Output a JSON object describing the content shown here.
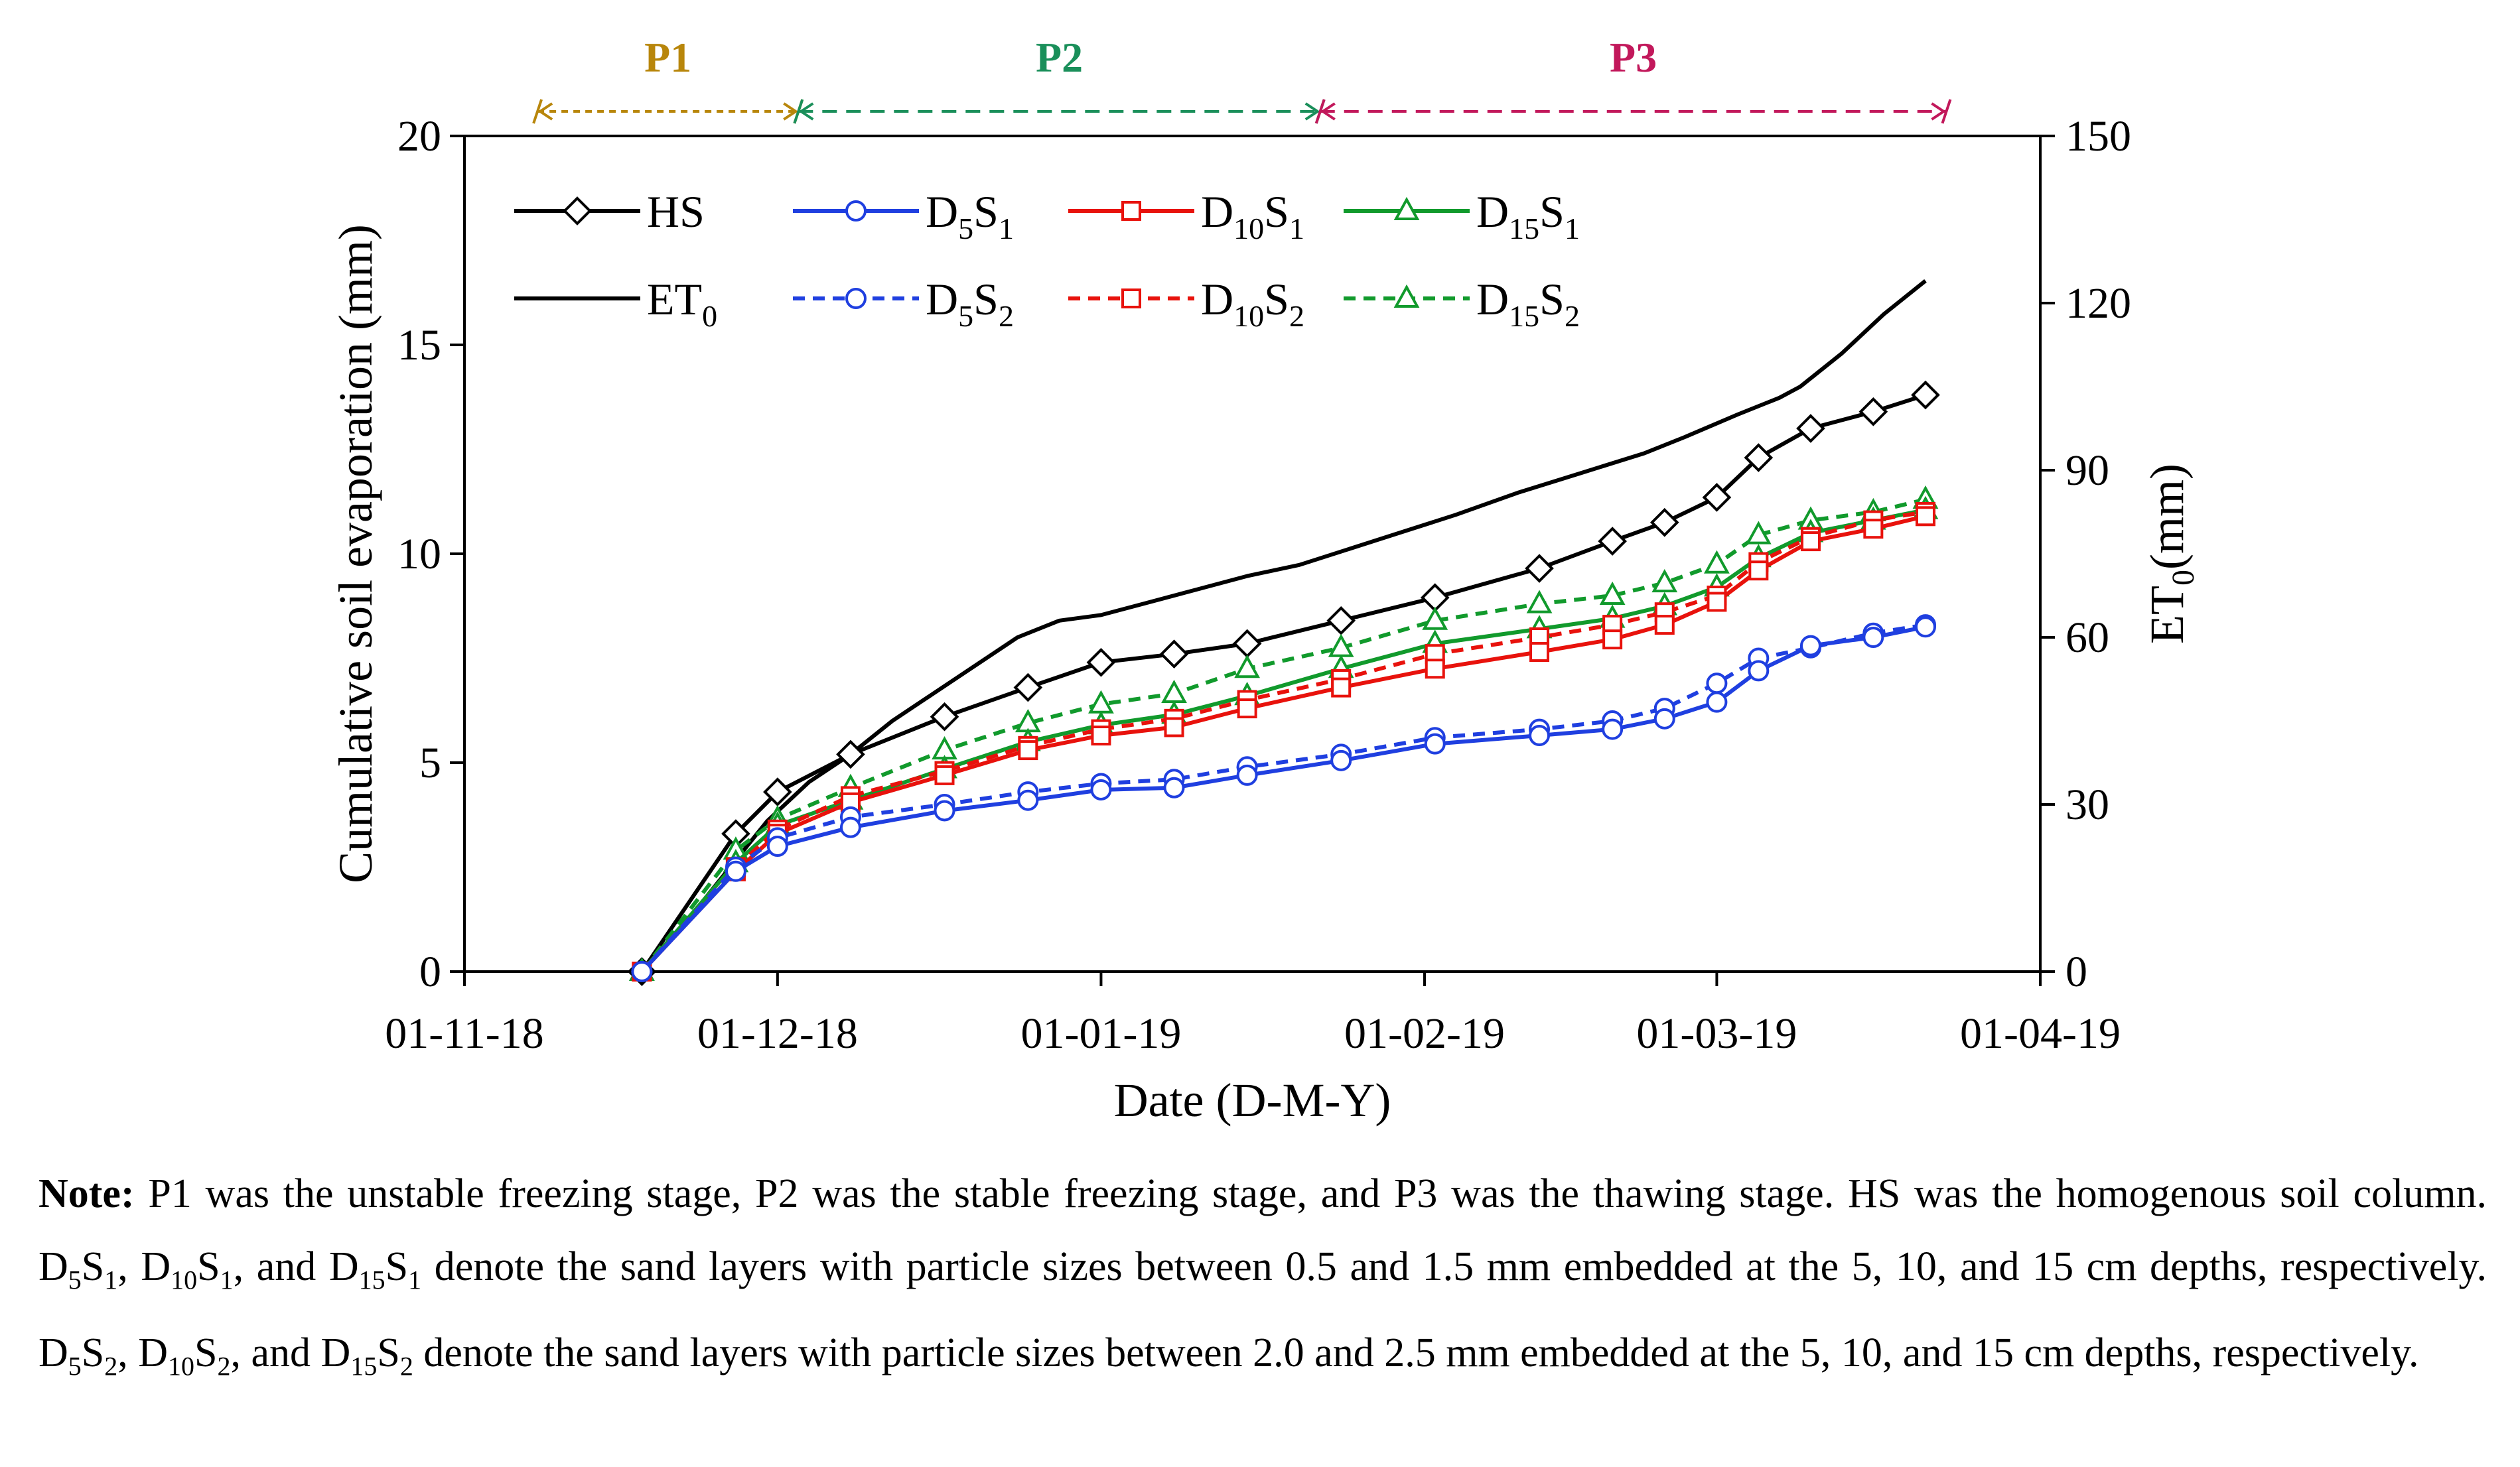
{
  "chart_data": {
    "type": "line",
    "x_axis": {
      "label": "Date (D-M-Y)",
      "range": [
        "2018-11-01",
        "2019-04-01"
      ],
      "ticks": [
        "2018-11-01",
        "2018-12-01",
        "2019-01-01",
        "2019-02-01",
        "2019-03-01",
        "2019-04-01"
      ],
      "tick_labels": [
        "01-11-18",
        "01-12-18",
        "01-01-19",
        "01-02-19",
        "01-03-19",
        "01-04-19"
      ]
    },
    "y_axis_left": {
      "label": "Cumulative soil evaporation (mm)",
      "range": [
        0,
        20
      ],
      "ticks": [
        0,
        5,
        10,
        15,
        20
      ],
      "tick_labels": [
        "0",
        "5",
        "10",
        "15",
        "20"
      ]
    },
    "y_axis_right": {
      "label": "ET",
      "label_sub": "0",
      "label_suffix": "(mm)",
      "range": [
        0,
        150
      ],
      "ticks": [
        0,
        30,
        60,
        90,
        120,
        150
      ],
      "tick_labels": [
        "0",
        "30",
        "60",
        "90",
        "120",
        "150"
      ]
    },
    "grid": false,
    "legend_position": "top-left",
    "stages": [
      {
        "label": "P1",
        "color": "#b8860b",
        "start": "2018-11-08",
        "end": "2018-12-03"
      },
      {
        "label": "P2",
        "color": "#1a8f5a",
        "start": "2018-12-03",
        "end": "2019-01-22"
      },
      {
        "label": "P3",
        "color": "#c2185b",
        "start": "2019-01-22",
        "end": "2019-03-23"
      }
    ],
    "series": [
      {
        "name": "HS",
        "name_main": "HS",
        "sub1": "",
        "mid": "",
        "sub2": "",
        "axis": "left",
        "color": "#000000",
        "dash": false,
        "marker": "diamond",
        "x": [
          "2018-11-18",
          "2018-11-27",
          "2018-12-01",
          "2018-12-08",
          "2018-12-17",
          "2018-12-25",
          "2019-01-01",
          "2019-01-08",
          "2019-01-15",
          "2019-01-24",
          "2019-02-02",
          "2019-02-12",
          "2019-02-19",
          "2019-02-24",
          "2019-03-01",
          "2019-03-05",
          "2019-03-10",
          "2019-03-16",
          "2019-03-21"
        ],
        "y": [
          0.0,
          3.3,
          4.3,
          5.2,
          6.1,
          6.8,
          7.4,
          7.6,
          7.85,
          8.4,
          8.95,
          9.65,
          10.3,
          10.75,
          11.35,
          12.3,
          13.0,
          13.4,
          13.8
        ]
      },
      {
        "name": "D5S1",
        "name_main": "D",
        "sub1": "5",
        "mid": "S",
        "sub2": "1",
        "axis": "left",
        "color": "#1f3fe0",
        "dash": false,
        "marker": "circle",
        "x": [
          "2018-11-18",
          "2018-11-27",
          "2018-12-01",
          "2018-12-08",
          "2018-12-17",
          "2018-12-25",
          "2019-01-01",
          "2019-01-08",
          "2019-01-15",
          "2019-01-24",
          "2019-02-02",
          "2019-02-12",
          "2019-02-19",
          "2019-02-24",
          "2019-03-01",
          "2019-03-05",
          "2019-03-10",
          "2019-03-16",
          "2019-03-21"
        ],
        "y": [
          0.0,
          2.4,
          3.0,
          3.45,
          3.85,
          4.1,
          4.35,
          4.4,
          4.7,
          5.05,
          5.45,
          5.65,
          5.8,
          6.05,
          6.45,
          7.2,
          7.8,
          8.0,
          8.25
        ]
      },
      {
        "name": "D10S1",
        "name_main": "D",
        "sub1": "10",
        "mid": "S",
        "sub2": "1",
        "axis": "left",
        "color": "#e8120c",
        "dash": false,
        "marker": "square",
        "x": [
          "2018-11-18",
          "2018-11-27",
          "2018-12-01",
          "2018-12-08",
          "2018-12-17",
          "2018-12-25",
          "2019-01-01",
          "2019-01-08",
          "2019-01-15",
          "2019-01-24",
          "2019-02-02",
          "2019-02-12",
          "2019-02-19",
          "2019-02-24",
          "2019-03-01",
          "2019-03-05",
          "2019-03-10",
          "2019-03-16",
          "2019-03-21"
        ],
        "y": [
          0.0,
          2.4,
          3.3,
          4.05,
          4.7,
          5.3,
          5.65,
          5.85,
          6.3,
          6.8,
          7.25,
          7.65,
          7.95,
          8.3,
          8.85,
          9.6,
          10.3,
          10.6,
          10.9
        ]
      },
      {
        "name": "D15S1",
        "name_main": "D",
        "sub1": "15",
        "mid": "S",
        "sub2": "1",
        "axis": "left",
        "color": "#119a2c",
        "dash": false,
        "marker": "triangle",
        "x": [
          "2018-11-18",
          "2018-11-27",
          "2018-12-01",
          "2018-12-08",
          "2018-12-17",
          "2018-12-25",
          "2019-01-01",
          "2019-01-08",
          "2019-01-15",
          "2019-01-24",
          "2019-02-02",
          "2019-02-12",
          "2019-02-19",
          "2019-02-24",
          "2019-03-01",
          "2019-03-05",
          "2019-03-10",
          "2019-03-16",
          "2019-03-21"
        ],
        "y": [
          0.0,
          2.6,
          3.5,
          4.1,
          4.85,
          5.5,
          5.9,
          6.15,
          6.6,
          7.25,
          7.85,
          8.2,
          8.45,
          8.75,
          9.2,
          9.9,
          10.5,
          10.8,
          11.05
        ]
      },
      {
        "name": "ET0",
        "name_main": "ET",
        "sub1": "0",
        "mid": "",
        "sub2": "",
        "axis": "right",
        "color": "#000000",
        "dash": false,
        "marker": "none",
        "x": [
          "2018-11-18",
          "2018-11-20",
          "2018-11-24",
          "2018-11-27",
          "2018-11-30",
          "2018-12-04",
          "2018-12-08",
          "2018-12-12",
          "2018-12-16",
          "2018-12-20",
          "2018-12-24",
          "2018-12-28",
          "2019-01-01",
          "2019-01-05",
          "2019-01-10",
          "2019-01-15",
          "2019-01-20",
          "2019-01-25",
          "2019-01-30",
          "2019-02-04",
          "2019-02-10",
          "2019-02-16",
          "2019-02-22",
          "2019-02-26",
          "2019-03-03",
          "2019-03-07",
          "2019-03-09",
          "2019-03-13",
          "2019-03-17",
          "2019-03-21"
        ],
        "y": [
          0,
          4,
          13,
          20,
          27,
          34,
          39,
          45,
          50,
          55,
          60,
          63,
          64,
          66,
          68.5,
          71,
          73,
          76,
          79,
          82,
          86,
          89.5,
          93,
          96,
          100,
          103,
          105,
          111,
          118,
          124
        ]
      },
      {
        "name": "D5S2",
        "name_main": "D",
        "sub1": "5",
        "mid": "S",
        "sub2": "2",
        "axis": "left",
        "color": "#1f3fe0",
        "dash": true,
        "marker": "circle",
        "x": [
          "2018-11-18",
          "2018-11-27",
          "2018-12-01",
          "2018-12-08",
          "2018-12-17",
          "2018-12-25",
          "2019-01-01",
          "2019-01-08",
          "2019-01-15",
          "2019-01-24",
          "2019-02-02",
          "2019-02-12",
          "2019-02-19",
          "2019-02-24",
          "2019-03-01",
          "2019-03-05",
          "2019-03-10",
          "2019-03-16",
          "2019-03-21"
        ],
        "y": [
          0.0,
          2.5,
          3.2,
          3.7,
          4.0,
          4.3,
          4.5,
          4.6,
          4.9,
          5.2,
          5.6,
          5.8,
          6.0,
          6.3,
          6.9,
          7.5,
          7.75,
          8.1,
          8.3
        ]
      },
      {
        "name": "D10S2",
        "name_main": "D",
        "sub1": "10",
        "mid": "S",
        "sub2": "2",
        "axis": "left",
        "color": "#e8120c",
        "dash": true,
        "marker": "square",
        "x": [
          "2018-11-18",
          "2018-11-27",
          "2018-12-01",
          "2018-12-08",
          "2018-12-17",
          "2018-12-25",
          "2019-01-01",
          "2019-01-08",
          "2019-01-15",
          "2019-01-24",
          "2019-02-02",
          "2019-02-12",
          "2019-02-19",
          "2019-02-24",
          "2019-03-01",
          "2019-03-05",
          "2019-03-10",
          "2019-03-16",
          "2019-03-21"
        ],
        "y": [
          0.0,
          2.5,
          3.4,
          4.2,
          4.8,
          5.4,
          5.8,
          6.05,
          6.5,
          7.0,
          7.6,
          8.0,
          8.3,
          8.6,
          9.0,
          9.8,
          10.4,
          10.8,
          11.0
        ]
      },
      {
        "name": "D15S2",
        "name_main": "D",
        "sub1": "15",
        "mid": "S",
        "sub2": "2",
        "axis": "left",
        "color": "#119a2c",
        "dash": true,
        "marker": "triangle",
        "x": [
          "2018-11-18",
          "2018-11-27",
          "2018-12-01",
          "2018-12-08",
          "2018-12-17",
          "2018-12-25",
          "2019-01-01",
          "2019-01-08",
          "2019-01-15",
          "2019-01-24",
          "2019-02-02",
          "2019-02-12",
          "2019-02-19",
          "2019-02-24",
          "2019-03-01",
          "2019-03-05",
          "2019-03-10",
          "2019-03-16",
          "2019-03-21"
        ],
        "y": [
          0.0,
          2.9,
          3.65,
          4.4,
          5.3,
          5.95,
          6.4,
          6.65,
          7.25,
          7.75,
          8.4,
          8.8,
          9.0,
          9.3,
          9.75,
          10.45,
          10.8,
          11.0,
          11.3
        ]
      }
    ]
  },
  "note": {
    "lead": "Note:",
    "segments": [
      {
        "t": " P1 was the unstable freezing stage, P2 was the stable freezing stage, and P3 was the thawing stage. HS was the homogenous soil column. D"
      },
      {
        "s": "5"
      },
      {
        "t": "S"
      },
      {
        "s": "1"
      },
      {
        "t": ", D"
      },
      {
        "s": "10"
      },
      {
        "t": "S"
      },
      {
        "s": "1"
      },
      {
        "t": ", and D"
      },
      {
        "s": "15"
      },
      {
        "t": "S"
      },
      {
        "s": "1"
      },
      {
        "t": " denote the sand layers with particle sizes between 0.5 and 1.5 mm embedded at the 5, 10, and 15 cm depths, respectively. D"
      },
      {
        "s": "5"
      },
      {
        "t": "S"
      },
      {
        "s": "2"
      },
      {
        "t": ", D"
      },
      {
        "s": "10"
      },
      {
        "t": "S"
      },
      {
        "s": "2"
      },
      {
        "t": ", and D"
      },
      {
        "s": "15"
      },
      {
        "t": "S"
      },
      {
        "s": "2"
      },
      {
        "t": " denote the sand layers with particle sizes between 2.0 and 2.5 mm embedded at the 5, 10, and 15 cm depths, respectively."
      }
    ]
  }
}
